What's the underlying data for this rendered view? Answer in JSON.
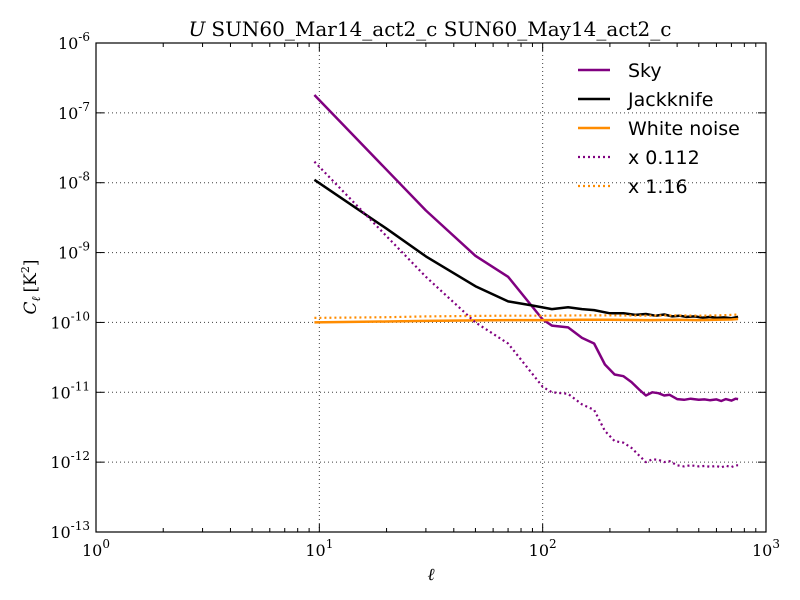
{
  "chart_data": {
    "type": "line",
    "title_prefix": "U",
    "title": "SUN60_Mar14_act2_c SUN60_May14_act2_c",
    "xlabel": "ℓ",
    "ylabel_main": "C",
    "ylabel_sub": "ℓ",
    "ylabel_unit": "[K",
    "ylabel_unit_sup": "2",
    "ylabel_unit_close": "]",
    "xscale": "log",
    "yscale": "log",
    "xlim": [
      1,
      1000
    ],
    "ylim": [
      1e-13,
      1e-06
    ],
    "grid": true,
    "legend_position": "top-right",
    "x_ticks": [
      {
        "value": 1,
        "base": "10",
        "exp": "0"
      },
      {
        "value": 10,
        "base": "10",
        "exp": "1"
      },
      {
        "value": 100,
        "base": "10",
        "exp": "2"
      },
      {
        "value": 1000,
        "base": "10",
        "exp": "3"
      }
    ],
    "y_ticks": [
      {
        "value": 1e-13,
        "base": "10",
        "exp": "-13"
      },
      {
        "value": 1e-12,
        "base": "10",
        "exp": "-12"
      },
      {
        "value": 1e-11,
        "base": "10",
        "exp": "-11"
      },
      {
        "value": 1e-10,
        "base": "10",
        "exp": "-10"
      },
      {
        "value": 1e-09,
        "base": "10",
        "exp": "-9"
      },
      {
        "value": 1e-08,
        "base": "10",
        "exp": "-8"
      },
      {
        "value": 1e-07,
        "base": "10",
        "exp": "-7"
      },
      {
        "value": 1e-06,
        "base": "10",
        "exp": "-6"
      }
    ],
    "series": [
      {
        "name": "Sky",
        "color": "#800080",
        "style": "solid",
        "x": [
          9.5,
          30,
          50,
          70,
          100,
          110,
          130,
          150,
          170,
          190,
          210,
          230,
          250,
          270,
          290,
          310,
          330,
          350,
          370,
          400,
          430,
          460,
          500,
          530,
          560,
          600,
          630,
          660,
          700,
          730,
          750
        ],
        "y": [
          1.8e-07,
          4e-09,
          9e-10,
          4.5e-10,
          1.1e-10,
          9e-11,
          8.5e-11,
          6e-11,
          5e-11,
          2.5e-11,
          1.8e-11,
          1.7e-11,
          1.4e-11,
          1.1e-11,
          9e-12,
          1e-11,
          9.7e-12,
          9e-12,
          9.2e-12,
          8e-12,
          7.8e-12,
          8.1e-12,
          7.8e-12,
          7.9e-12,
          7.7e-12,
          7.9e-12,
          7.5e-12,
          8e-12,
          7.6e-12,
          8.1e-12,
          8e-12
        ]
      },
      {
        "name": "Jackknife",
        "color": "#000000",
        "style": "solid",
        "x": [
          9.5,
          20,
          30,
          50,
          70,
          90,
          110,
          130,
          150,
          170,
          200,
          230,
          260,
          290,
          320,
          350,
          380,
          410,
          440,
          480,
          520,
          560,
          600,
          650,
          700,
          750
        ],
        "y": [
          1.1e-08,
          2.2e-09,
          8.8e-10,
          3.3e-10,
          2e-10,
          1.75e-10,
          1.55e-10,
          1.65e-10,
          1.55e-10,
          1.5e-10,
          1.35e-10,
          1.35e-10,
          1.28e-10,
          1.32e-10,
          1.25e-10,
          1.3e-10,
          1.22e-10,
          1.25e-10,
          1.2e-10,
          1.22e-10,
          1.17e-10,
          1.2e-10,
          1.16e-10,
          1.18e-10,
          1.15e-10,
          1.2e-10
        ]
      },
      {
        "name": "White noise",
        "color": "#FF8C00",
        "style": "solid",
        "x": [
          9.5,
          20,
          30,
          50,
          70,
          100,
          150,
          200,
          300,
          400,
          500,
          600,
          700,
          750
        ],
        "y": [
          1e-10,
          1.03e-10,
          1.05e-10,
          1.07e-10,
          1.08e-10,
          1.08e-10,
          1.09e-10,
          1.09e-10,
          1.08e-10,
          1.09e-10,
          1.08e-10,
          1.09e-10,
          1.1e-10,
          1.12e-10
        ]
      },
      {
        "name": "x 0.112",
        "color": "#800080",
        "style": "dotted",
        "x": [
          9.5,
          30,
          50,
          70,
          100,
          110,
          130,
          150,
          170,
          190,
          210,
          230,
          250,
          270,
          290,
          310,
          330,
          350,
          370,
          400,
          430,
          460,
          500,
          530,
          560,
          600,
          630,
          660,
          700,
          730,
          750
        ],
        "y": [
          2e-08,
          4.5e-10,
          1e-10,
          5e-11,
          1.2e-11,
          1e-11,
          9.5e-12,
          6.7e-12,
          5.6e-12,
          2.8e-12,
          2e-12,
          1.9e-12,
          1.6e-12,
          1.25e-12,
          1e-12,
          1.1e-12,
          1.08e-12,
          1e-12,
          1.03e-12,
          9e-13,
          8.7e-13,
          9e-13,
          8.7e-13,
          8.8e-13,
          8.6e-13,
          8.8e-13,
          8.4e-13,
          8.9e-13,
          8.5e-13,
          9e-13,
          9e-13
        ]
      },
      {
        "name": "x 1.16",
        "color": "#FF8C00",
        "style": "dotted",
        "x": [
          9.5,
          20,
          30,
          50,
          70,
          100,
          150,
          200,
          300,
          400,
          500,
          600,
          700,
          750
        ],
        "y": [
          1.16e-10,
          1.19e-10,
          1.22e-10,
          1.24e-10,
          1.25e-10,
          1.25e-10,
          1.26e-10,
          1.26e-10,
          1.25e-10,
          1.26e-10,
          1.25e-10,
          1.26e-10,
          1.28e-10,
          1.3e-10
        ]
      }
    ]
  }
}
